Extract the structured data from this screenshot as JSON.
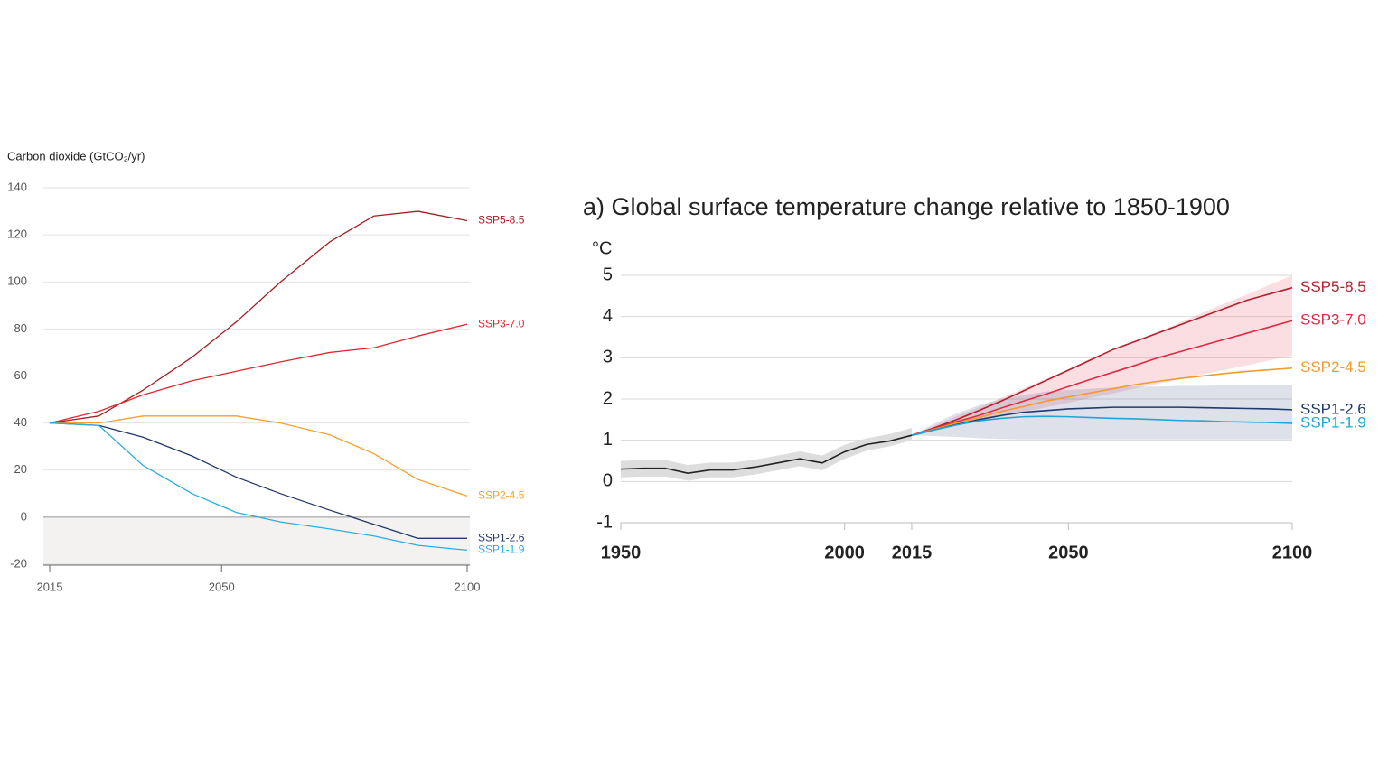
{
  "chart_data": [
    {
      "type": "line",
      "y_label": "Carbon dioxide (GtCO₂/yr)",
      "x": [
        2015,
        2025,
        2034,
        2044,
        2053,
        2062,
        2072,
        2081,
        2090,
        2100
      ],
      "xlim": [
        2015,
        2100
      ],
      "xticks": [
        2015,
        2050,
        2100
      ],
      "ylim": [
        -20,
        140
      ],
      "yticks": [
        -20,
        0,
        20,
        40,
        60,
        80,
        100,
        120,
        140
      ],
      "grid": true,
      "series": [
        {
          "name": "SSP5-8.5",
          "color": "#a51e22",
          "values": [
            40,
            43,
            54,
            68,
            83,
            100,
            117,
            128,
            130,
            126
          ]
        },
        {
          "name": "SSP3-7.0",
          "color": "#e0282e",
          "values": [
            40,
            45,
            52,
            58,
            62,
            66,
            70,
            72,
            77,
            82
          ]
        },
        {
          "name": "SSP2-4.5",
          "color": "#f5a030",
          "values": [
            40,
            40,
            43,
            43,
            43,
            40,
            35,
            27,
            16,
            9
          ]
        },
        {
          "name": "SSP1-2.6",
          "color": "#22376c",
          "values": [
            40,
            39,
            34,
            26,
            17,
            10,
            3,
            -3,
            -9,
            -9
          ]
        },
        {
          "name": "SSP1-1.9",
          "color": "#29aee0",
          "values": [
            40,
            39,
            22,
            10,
            2,
            -2,
            -5,
            -8,
            -12,
            -14
          ]
        }
      ]
    },
    {
      "type": "line",
      "title": "a) Global surface temperature change relative to 1850-1900",
      "y_label": "°C",
      "x": [
        1950,
        1955,
        1960,
        1965,
        1970,
        1975,
        1980,
        1985,
        1990,
        1995,
        2000,
        2005,
        2010,
        2015,
        2020,
        2025,
        2030,
        2035,
        2040,
        2045,
        2050,
        2055,
        2060,
        2065,
        2070,
        2075,
        2080,
        2085,
        2090,
        2095,
        2100
      ],
      "xlim": [
        1950,
        2100
      ],
      "xticks": [
        1950,
        2000,
        2015,
        2050,
        2100
      ],
      "ylim": [
        -1,
        5
      ],
      "yticks": [
        -1,
        0,
        1,
        2,
        3,
        4,
        5
      ],
      "grid": true,
      "series": [
        {
          "color": "#222222",
          "values": [
            0.3,
            0.32,
            0.32,
            0.2,
            0.28,
            0.28,
            0.35,
            0.45,
            0.55,
            0.45,
            0.72,
            0.9,
            0.98,
            1.12,
            null,
            null,
            null,
            null,
            null,
            null,
            null,
            null,
            null,
            null,
            null,
            null,
            null,
            null,
            null,
            null,
            null
          ],
          "band": {
            "color": "#dddddd",
            "lower": [
              0.1,
              0.12,
              0.12,
              0.02,
              0.1,
              0.1,
              0.17,
              0.27,
              0.37,
              0.27,
              0.55,
              0.75,
              0.85,
              1.0,
              null,
              null,
              null,
              null,
              null,
              null,
              null,
              null,
              null,
              null,
              null,
              null,
              null,
              null,
              null,
              null,
              null
            ],
            "upper": [
              0.5,
              0.52,
              0.52,
              0.4,
              0.46,
              0.46,
              0.53,
              0.63,
              0.73,
              0.63,
              0.89,
              1.05,
              1.15,
              1.3,
              null,
              null,
              null,
              null,
              null,
              null,
              null,
              null,
              null,
              null,
              null,
              null,
              null,
              null,
              null,
              null,
              null
            ]
          }
        },
        {
          "name": "SSP5-8.5",
          "color": "#b21f2d",
          "values": [
            null,
            null,
            null,
            null,
            null,
            null,
            null,
            null,
            null,
            null,
            null,
            null,
            null,
            1.12,
            1.3,
            1.5,
            1.72,
            1.95,
            2.2,
            2.45,
            2.7,
            2.95,
            3.2,
            3.4,
            3.6,
            3.8,
            4.0,
            4.2,
            4.4,
            4.55,
            4.7
          ]
        },
        {
          "name": "SSP3-7.0",
          "color": "#e02a44",
          "values": [
            null,
            null,
            null,
            null,
            null,
            null,
            null,
            null,
            null,
            null,
            null,
            null,
            null,
            1.12,
            1.28,
            1.45,
            1.6,
            1.78,
            1.95,
            2.12,
            2.3,
            2.48,
            2.65,
            2.82,
            3.0,
            3.15,
            3.3,
            3.45,
            3.6,
            3.75,
            3.9
          ],
          "band": {
            "color": "rgba(225,70,95,0.18)",
            "lower": [
              null,
              null,
              null,
              null,
              null,
              null,
              null,
              null,
              null,
              null,
              null,
              null,
              null,
              1.12,
              1.23,
              1.35,
              1.46,
              1.57,
              1.69,
              1.8,
              1.91,
              2.03,
              2.14,
              2.26,
              2.37,
              2.48,
              2.6,
              2.71,
              2.82,
              2.94,
              3.05
            ],
            "upper": [
              null,
              null,
              null,
              null,
              null,
              null,
              null,
              null,
              null,
              null,
              null,
              null,
              null,
              1.12,
              1.35,
              1.58,
              1.8,
              2.03,
              2.26,
              2.49,
              2.72,
              2.95,
              3.17,
              3.4,
              3.63,
              3.86,
              4.09,
              4.32,
              4.54,
              4.77,
              5.0
            ]
          }
        },
        {
          "name": "SSP2-4.5",
          "color": "#f29a2e",
          "values": [
            null,
            null,
            null,
            null,
            null,
            null,
            null,
            null,
            null,
            null,
            null,
            null,
            null,
            1.12,
            1.27,
            1.42,
            1.55,
            1.7,
            1.82,
            1.95,
            2.05,
            2.15,
            2.25,
            2.35,
            2.43,
            2.5,
            2.56,
            2.62,
            2.67,
            2.71,
            2.75
          ]
        },
        {
          "name": "SSP1-2.6",
          "color": "#1f3a6e",
          "values": [
            null,
            null,
            null,
            null,
            null,
            null,
            null,
            null,
            null,
            null,
            null,
            null,
            null,
            1.12,
            1.25,
            1.38,
            1.5,
            1.6,
            1.68,
            1.72,
            1.76,
            1.78,
            1.8,
            1.8,
            1.8,
            1.8,
            1.79,
            1.78,
            1.77,
            1.76,
            1.74
          ],
          "band": {
            "color": "rgba(60,80,130,0.17)",
            "lower": [
              null,
              null,
              null,
              null,
              null,
              null,
              null,
              null,
              null,
              null,
              null,
              null,
              null,
              1.12,
              1.1,
              1.08,
              1.05,
              1.03,
              1.02,
              1.02,
              1.02,
              1.02,
              1.02,
              1.02,
              1.02,
              1.02,
              1.02,
              1.02,
              1.02,
              1.02,
              1.02
            ],
            "upper": [
              null,
              null,
              null,
              null,
              null,
              null,
              null,
              null,
              null,
              null,
              null,
              null,
              null,
              1.12,
              1.4,
              1.65,
              1.85,
              2.0,
              2.1,
              2.18,
              2.22,
              2.25,
              2.28,
              2.3,
              2.3,
              2.32,
              2.32,
              2.33,
              2.33,
              2.33,
              2.33
            ]
          }
        },
        {
          "name": "SSP1-1.9",
          "color": "#1fa6d8",
          "values": [
            null,
            null,
            null,
            null,
            null,
            null,
            null,
            null,
            null,
            null,
            null,
            null,
            null,
            1.12,
            1.25,
            1.37,
            1.47,
            1.53,
            1.57,
            1.58,
            1.57,
            1.55,
            1.53,
            1.52,
            1.5,
            1.48,
            1.47,
            1.45,
            1.44,
            1.43,
            1.41
          ]
        }
      ]
    }
  ]
}
